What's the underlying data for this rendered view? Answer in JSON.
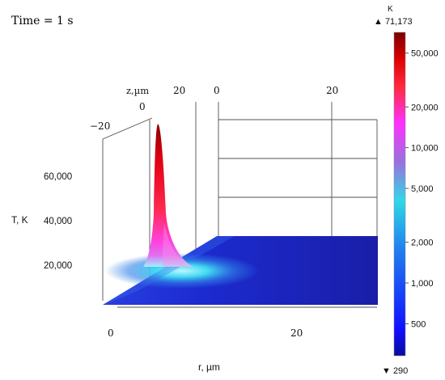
{
  "chart_data": {
    "type": "surface3d",
    "time_label": "Time = 1 s",
    "zlabel": "T, K",
    "ylabel": "z,µm",
    "xlabel": "r, µm",
    "z_ticks": [
      {
        "label": "20,000",
        "value": 20000
      },
      {
        "label": "40,000",
        "value": 40000
      },
      {
        "label": "60,000",
        "value": 60000
      }
    ],
    "y_ticks_left": [
      "−20",
      "0",
      "20"
    ],
    "y_ticks_right": [
      "0",
      "20"
    ],
    "x_ticks": [
      "0",
      "20"
    ],
    "peak": {
      "r": 0,
      "z": 0,
      "T": 71173
    },
    "colorbar": {
      "unit": "K",
      "max_label": "▲ 71,173",
      "min_label": "▼ 290",
      "max": 71173,
      "min": 290,
      "scale": "log",
      "ticks": [
        {
          "label": "50,000",
          "value": 50000
        },
        {
          "label": "20,000",
          "value": 20000
        },
        {
          "label": "10,000",
          "value": 10000
        },
        {
          "label": "5,000",
          "value": 5000
        },
        {
          "label": "2,000",
          "value": 2000
        },
        {
          "label": "1,000",
          "value": 1000
        },
        {
          "label": "500",
          "value": 500
        }
      ],
      "colors": [
        "#0a0aa0",
        "#1010ff",
        "#2080f0",
        "#30d8e8",
        "#9a70e0",
        "#ff30ff",
        "#ff2a40",
        "#dc0000",
        "#7a0000"
      ]
    }
  }
}
